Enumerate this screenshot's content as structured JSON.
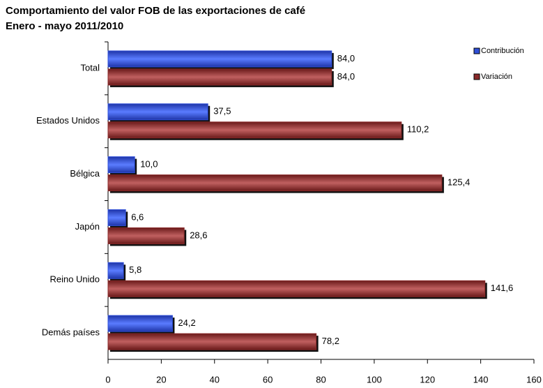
{
  "chart_data": {
    "type": "bar",
    "orientation": "horizontal",
    "title": "Comportamiento del valor FOB de las exportaciones de café",
    "subtitle": "Enero - mayo 2011/2010",
    "categories": [
      "Total",
      "Estados Unidos",
      "Bélgica",
      "Japón",
      "Reino Unido",
      "Demás países"
    ],
    "series": [
      {
        "name": "Contribución",
        "color": "#2f4fd8",
        "values": [
          84.0,
          37.5,
          10.0,
          6.6,
          5.8,
          24.2
        ],
        "value_labels": [
          "84,0",
          "37,5",
          "10,0",
          "6,6",
          "5,8",
          "24,2"
        ]
      },
      {
        "name": "Variación",
        "color": "#8b2a2a",
        "values": [
          84.0,
          110.2,
          125.4,
          28.6,
          141.6,
          78.2
        ],
        "value_labels": [
          "84,0",
          "110,2",
          "125,4",
          "28,6",
          "141,6",
          "78,2"
        ]
      }
    ],
    "xlim": [
      0,
      160
    ],
    "xticks": [
      0,
      20,
      40,
      60,
      80,
      100,
      120,
      140,
      160
    ],
    "legend": "top-right"
  }
}
